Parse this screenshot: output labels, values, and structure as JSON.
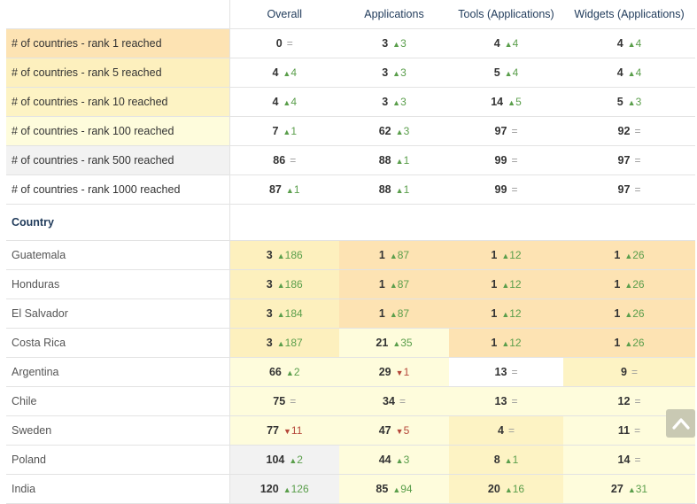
{
  "header": {
    "columns": [
      "Overall",
      "Applications",
      "Tools (Applications)",
      "Widgets (Applications)"
    ]
  },
  "ranks": [
    {
      "label": "# of countries - rank 1 reached",
      "bg": "#fde3b3",
      "cells": [
        {
          "v": "0",
          "d": "eq",
          "c": ""
        },
        {
          "v": "3",
          "d": "up",
          "c": "3"
        },
        {
          "v": "4",
          "d": "up",
          "c": "4"
        },
        {
          "v": "4",
          "d": "up",
          "c": "4"
        }
      ]
    },
    {
      "label": "# of countries - rank 5 reached",
      "bg": "#fdf0be",
      "cells": [
        {
          "v": "4",
          "d": "up",
          "c": "4"
        },
        {
          "v": "3",
          "d": "up",
          "c": "3"
        },
        {
          "v": "5",
          "d": "up",
          "c": "4"
        },
        {
          "v": "4",
          "d": "up",
          "c": "4"
        }
      ]
    },
    {
      "label": "# of countries - rank 10 reached",
      "bg": "#fdf3c4",
      "cells": [
        {
          "v": "4",
          "d": "up",
          "c": "4"
        },
        {
          "v": "3",
          "d": "up",
          "c": "3"
        },
        {
          "v": "14",
          "d": "up",
          "c": "5"
        },
        {
          "v": "5",
          "d": "up",
          "c": "3"
        }
      ]
    },
    {
      "label": "# of countries - rank 100 reached",
      "bg": "#fefcdc",
      "cells": [
        {
          "v": "7",
          "d": "up",
          "c": "1"
        },
        {
          "v": "62",
          "d": "up",
          "c": "3"
        },
        {
          "v": "97",
          "d": "eq",
          "c": ""
        },
        {
          "v": "92",
          "d": "eq",
          "c": ""
        }
      ]
    },
    {
      "label": "# of countries - rank 500 reached",
      "bg": "#f2f2f2",
      "cells": [
        {
          "v": "86",
          "d": "eq",
          "c": ""
        },
        {
          "v": "88",
          "d": "up",
          "c": "1"
        },
        {
          "v": "99",
          "d": "eq",
          "c": ""
        },
        {
          "v": "97",
          "d": "eq",
          "c": ""
        }
      ]
    },
    {
      "label": "# of countries - rank 1000 reached",
      "bg": "#ffffff",
      "cells": [
        {
          "v": "87",
          "d": "up",
          "c": "1"
        },
        {
          "v": "88",
          "d": "up",
          "c": "1"
        },
        {
          "v": "99",
          "d": "eq",
          "c": ""
        },
        {
          "v": "97",
          "d": "eq",
          "c": ""
        }
      ]
    }
  ],
  "country_section": {
    "title": "Country"
  },
  "countries": [
    {
      "name": "Guatemala",
      "cells": [
        {
          "v": "3",
          "d": "up",
          "c": "186",
          "bg": "#fdf0be"
        },
        {
          "v": "1",
          "d": "up",
          "c": "87",
          "bg": "#fde3b3"
        },
        {
          "v": "1",
          "d": "up",
          "c": "12",
          "bg": "#fde3b3"
        },
        {
          "v": "1",
          "d": "up",
          "c": "26",
          "bg": "#fde3b3"
        }
      ]
    },
    {
      "name": "Honduras",
      "cells": [
        {
          "v": "3",
          "d": "up",
          "c": "186",
          "bg": "#fdf0be"
        },
        {
          "v": "1",
          "d": "up",
          "c": "87",
          "bg": "#fde3b3"
        },
        {
          "v": "1",
          "d": "up",
          "c": "12",
          "bg": "#fde3b3"
        },
        {
          "v": "1",
          "d": "up",
          "c": "26",
          "bg": "#fde3b3"
        }
      ]
    },
    {
      "name": "El Salvador",
      "cells": [
        {
          "v": "3",
          "d": "up",
          "c": "184",
          "bg": "#fdf0be"
        },
        {
          "v": "1",
          "d": "up",
          "c": "87",
          "bg": "#fde3b3"
        },
        {
          "v": "1",
          "d": "up",
          "c": "12",
          "bg": "#fde3b3"
        },
        {
          "v": "1",
          "d": "up",
          "c": "26",
          "bg": "#fde3b3"
        }
      ]
    },
    {
      "name": "Costa Rica",
      "cells": [
        {
          "v": "3",
          "d": "up",
          "c": "187",
          "bg": "#fdf0be"
        },
        {
          "v": "21",
          "d": "up",
          "c": "35",
          "bg": "#fefcdc"
        },
        {
          "v": "1",
          "d": "up",
          "c": "12",
          "bg": "#fde3b3"
        },
        {
          "v": "1",
          "d": "up",
          "c": "26",
          "bg": "#fde3b3"
        }
      ]
    },
    {
      "name": "Argentina",
      "cells": [
        {
          "v": "66",
          "d": "up",
          "c": "2",
          "bg": "#fefcdc"
        },
        {
          "v": "29",
          "d": "down",
          "c": "1",
          "bg": "#fefcdc"
        },
        {
          "v": "13",
          "d": "eq",
          "c": "",
          "bg": "#ffffff"
        },
        {
          "v": "9",
          "d": "eq",
          "c": "",
          "bg": "#fdf3c4"
        }
      ]
    },
    {
      "name": "Chile",
      "cells": [
        {
          "v": "75",
          "d": "eq",
          "c": "",
          "bg": "#fefcdc"
        },
        {
          "v": "34",
          "d": "eq",
          "c": "",
          "bg": "#fefcdc"
        },
        {
          "v": "13",
          "d": "eq",
          "c": "",
          "bg": "#fefcdc"
        },
        {
          "v": "12",
          "d": "eq",
          "c": "",
          "bg": "#fefcdc"
        }
      ]
    },
    {
      "name": "Sweden",
      "cells": [
        {
          "v": "77",
          "d": "down",
          "c": "11",
          "bg": "#fefcdc"
        },
        {
          "v": "47",
          "d": "down",
          "c": "5",
          "bg": "#fefcdc"
        },
        {
          "v": "4",
          "d": "eq",
          "c": "",
          "bg": "#fdf3c4"
        },
        {
          "v": "11",
          "d": "eq",
          "c": "",
          "bg": "#fefcdc"
        }
      ]
    },
    {
      "name": "Poland",
      "cells": [
        {
          "v": "104",
          "d": "up",
          "c": "2",
          "bg": "#f2f2f2"
        },
        {
          "v": "44",
          "d": "up",
          "c": "3",
          "bg": "#fefcdc"
        },
        {
          "v": "8",
          "d": "up",
          "c": "1",
          "bg": "#fdf3c4"
        },
        {
          "v": "14",
          "d": "eq",
          "c": "",
          "bg": "#fefcdc"
        }
      ]
    },
    {
      "name": "India",
      "cells": [
        {
          "v": "120",
          "d": "up",
          "c": "126",
          "bg": "#f2f2f2"
        },
        {
          "v": "85",
          "d": "up",
          "c": "94",
          "bg": "#fefcdc"
        },
        {
          "v": "20",
          "d": "up",
          "c": "16",
          "bg": "#fdf3c4"
        },
        {
          "v": "27",
          "d": "up",
          "c": "31",
          "bg": "#fefcdc"
        }
      ]
    }
  ],
  "scroll_top": {
    "icon": "chevron-up-icon"
  }
}
